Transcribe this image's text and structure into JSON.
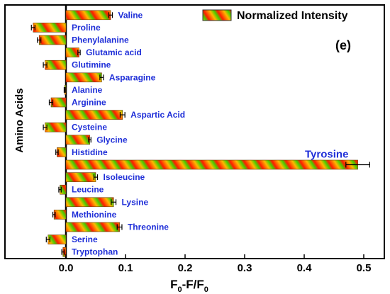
{
  "chart_data": {
    "type": "bar",
    "orientation": "horizontal",
    "panel_label": "(e)",
    "xlabel_main": "F",
    "xlabel_sub0": "0",
    "xlabel_mid": "-F/F",
    "xlabel_sub1": "0",
    "ylabel": "Amino Acids",
    "xlim": [
      -0.1,
      0.52
    ],
    "xticks": [
      "0.0",
      "0.1",
      "0.2",
      "0.3",
      "0.4",
      "0.5"
    ],
    "xtick_values": [
      0.0,
      0.1,
      0.2,
      0.3,
      0.4,
      0.5
    ],
    "legend": {
      "label": "Normalized Intensity",
      "position": "top-right"
    },
    "colors": {
      "fill_a": "#ff1a00",
      "fill_b": "#ffb800",
      "fill_c": "#44d000",
      "label": "#1f2fd8",
      "errorbar": "#000000"
    },
    "categories": [
      "Valine",
      "Proline",
      "Phenylalanine",
      "Glutamic acid",
      "Glutimine",
      "Asparagine",
      "Alanine",
      "Arginine",
      "Aspartic Acid",
      "Cysteine",
      "Glycine",
      "Histidine",
      "Tyrosine",
      "Isoleucine",
      "Leucine",
      "Lysine",
      "Methionine",
      "Threonine",
      "Serine",
      "Tryptophan"
    ],
    "values": [
      0.075,
      -0.055,
      -0.045,
      0.022,
      -0.035,
      0.06,
      -0.002,
      -0.025,
      0.095,
      -0.035,
      0.04,
      -0.015,
      0.49,
      0.05,
      -0.01,
      0.08,
      -0.02,
      0.09,
      -0.03,
      -0.005
    ],
    "errors": [
      0.003,
      0.003,
      0.003,
      0.002,
      0.003,
      0.003,
      0.001,
      0.003,
      0.004,
      0.003,
      0.002,
      0.002,
      0.02,
      0.003,
      0.002,
      0.004,
      0.002,
      0.004,
      0.003,
      0.002
    ]
  }
}
